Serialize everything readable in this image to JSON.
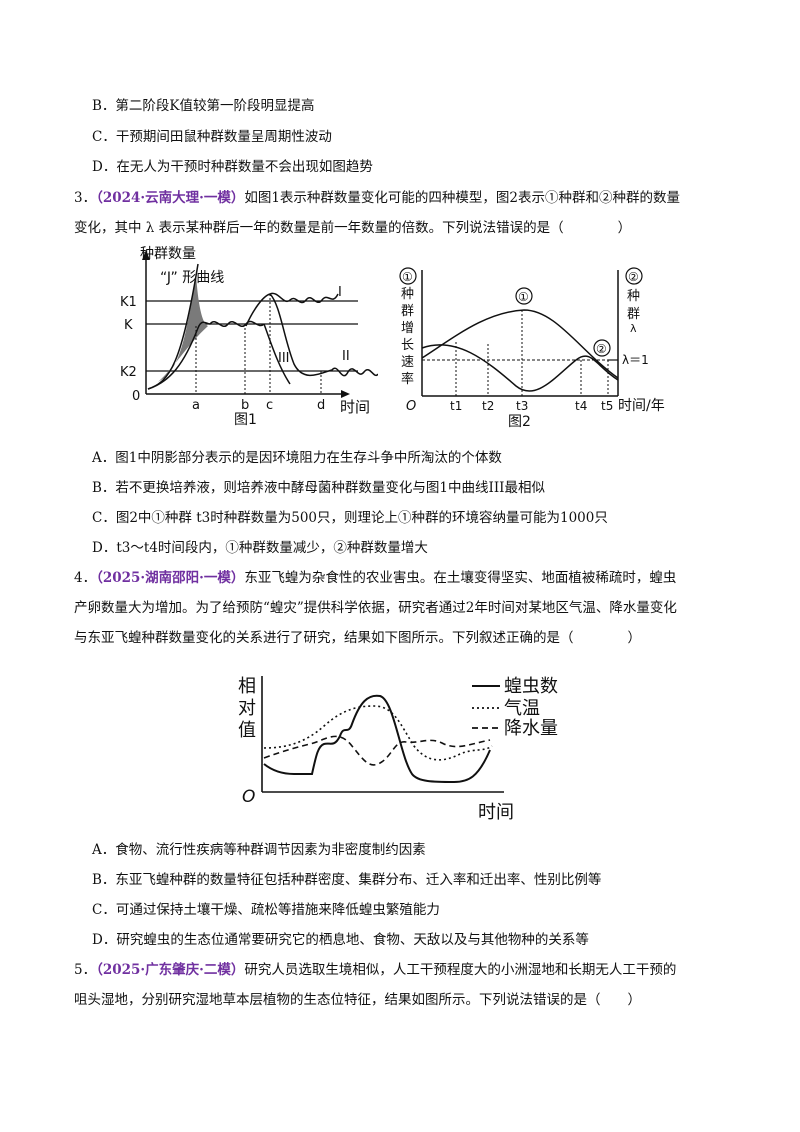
{
  "q2_options": {
    "b": "B．第二阶段K值较第一阶段明显提高",
    "c": "C．干预期间田鼠种群数量呈周期性波动",
    "d": "D．在无人为干预时种群数量不会出现如图趋势"
  },
  "q3": {
    "num": "3．",
    "source": "（2024·云南大理·一模）",
    "stem_1": "如图1表示种群数量变化可能的四种模型，图2表示①种群和②种群的数量",
    "stem_2": "变化，其中 λ 表示某种群后一年的数量是前一年数量的倍数。下列说法错误的是（　　　　）",
    "fig1": {
      "ylabel": "种群数量",
      "j_label": "“J” 形曲线",
      "k1": "K1",
      "k": "K",
      "k2": "K2",
      "origin": "0",
      "ticks": [
        "a",
        "b",
        "c",
        "d"
      ],
      "xlabel": "时间",
      "curve_1": "I",
      "curve_2": "II",
      "curve_3": "III",
      "caption": "图1"
    },
    "fig2": {
      "left_circle": "①",
      "left_label": [
        "种",
        "群",
        "增",
        "长",
        "速",
        "率"
      ],
      "right_circle": "②",
      "right_label": [
        "种",
        "群"
      ],
      "lambda": "λ",
      "lambda_eq": "λ＝1",
      "peak_1": "①",
      "peak_2": "②",
      "origin": "O",
      "ticks": [
        "t1",
        "t2",
        "t3",
        "t4",
        "t5"
      ],
      "xlabel": "时间/年",
      "caption": "图2"
    },
    "a": "A．图1中阴影部分表示的是因环境阻力在生存斗争中所淘汰的个体数",
    "b": "B．若不更换培养液，则培养液中酵母菌种群数量变化与图1中曲线III最相似",
    "c": "C．图2中①种群 t3时种群数量为500只，则理论上①种群的环境容纳量可能为1000只",
    "d": "D．t3～t4时间段内，①种群数量减少，②种群数量增大"
  },
  "q4": {
    "num": "4．",
    "source": "（2025·湖南邵阳·一模）",
    "stem_1": "东亚飞蝗为杂食性的农业害虫。在土壤变得坚实、地面植被稀疏时，蝗虫",
    "stem_2": "产卵数量大为增加。为了给预防“蝗灾”提供科学依据，研究者通过2年时间对某地区气温、降水量变化",
    "stem_3": "与东亚飞蝗种群数量变化的关系进行了研究，结果如下图所示。下列叙述正确的是（　　　　）",
    "fig": {
      "ylabel": [
        "相",
        "对",
        "值"
      ],
      "origin": "O",
      "xlabel": "时间",
      "legend_1": "蝗虫数",
      "legend_2": "气温",
      "legend_3": "降水量"
    },
    "a": "A．食物、流行性疾病等种群调节因素为非密度制约因素",
    "b": "B．东亚飞蝗种群的数量特征包括种群密度、集群分布、迁入率和迁出率、性别比例等",
    "c": "C．可通过保持土壤干燥、疏松等措施来降低蝗虫繁殖能力",
    "d": "D．研究蝗虫的生态位通常要研究它的栖息地、食物、天敌以及与其他物种的关系等"
  },
  "q5": {
    "num": "5．",
    "source": "（2025·广东肇庆·二模）",
    "stem_1": "研究人员选取生境相似，人工干预程度大的小洲湿地和长期无人工干预的",
    "stem_2": "咀头湿地，分别研究湿地草本层植物的生态位特征，结果如图所示。下列说法错误的是（　　）"
  }
}
